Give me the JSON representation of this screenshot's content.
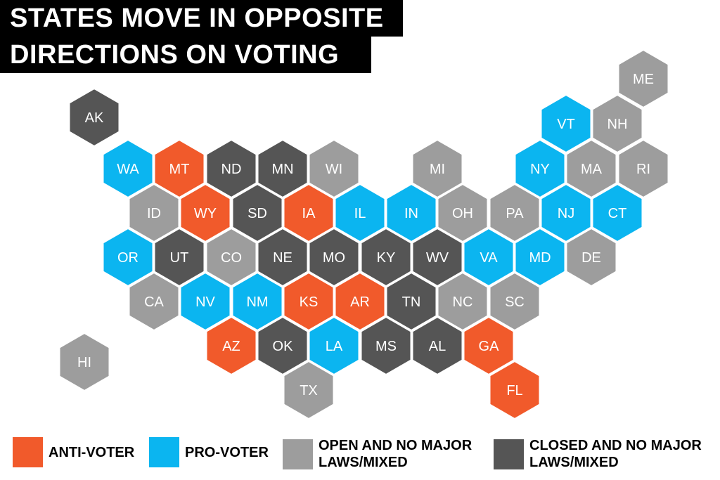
{
  "title": {
    "line1": "STATES MOVE IN OPPOSITE",
    "line2": "DIRECTIONS ON VOTING"
  },
  "colors": {
    "anti": "#f15a2b",
    "pro": "#0bb5f0",
    "open": "#9d9d9d",
    "closed": "#555555",
    "text": "#ffffff",
    "stroke": "#ffffff"
  },
  "legend": [
    {
      "key": "anti",
      "label_1": "ANTI-VOTER",
      "label_2": ""
    },
    {
      "key": "pro",
      "label_1": "PRO-VOTER",
      "label_2": ""
    },
    {
      "key": "open",
      "label_1": "OPEN AND NO MAJOR",
      "label_2": "LAWS/MIXED"
    },
    {
      "key": "closed",
      "label_1": "CLOSED AND NO MAJOR",
      "label_2": "LAWS/MIXED"
    }
  ],
  "states": [
    {
      "abbr": "ME",
      "cat": "open"
    },
    {
      "abbr": "AK",
      "cat": "closed"
    },
    {
      "abbr": "VT",
      "cat": "pro"
    },
    {
      "abbr": "NH",
      "cat": "open"
    },
    {
      "abbr": "WA",
      "cat": "pro"
    },
    {
      "abbr": "MT",
      "cat": "anti"
    },
    {
      "abbr": "ND",
      "cat": "closed"
    },
    {
      "abbr": "MN",
      "cat": "closed"
    },
    {
      "abbr": "WI",
      "cat": "open"
    },
    {
      "abbr": "MI",
      "cat": "open"
    },
    {
      "abbr": "NY",
      "cat": "pro"
    },
    {
      "abbr": "MA",
      "cat": "open"
    },
    {
      "abbr": "RI",
      "cat": "open"
    },
    {
      "abbr": "ID",
      "cat": "open"
    },
    {
      "abbr": "WY",
      "cat": "anti"
    },
    {
      "abbr": "SD",
      "cat": "closed"
    },
    {
      "abbr": "IA",
      "cat": "anti"
    },
    {
      "abbr": "IL",
      "cat": "pro"
    },
    {
      "abbr": "IN",
      "cat": "pro"
    },
    {
      "abbr": "OH",
      "cat": "open"
    },
    {
      "abbr": "PA",
      "cat": "open"
    },
    {
      "abbr": "NJ",
      "cat": "pro"
    },
    {
      "abbr": "CT",
      "cat": "pro"
    },
    {
      "abbr": "OR",
      "cat": "pro"
    },
    {
      "abbr": "UT",
      "cat": "closed"
    },
    {
      "abbr": "CO",
      "cat": "open"
    },
    {
      "abbr": "NE",
      "cat": "closed"
    },
    {
      "abbr": "MO",
      "cat": "closed"
    },
    {
      "abbr": "KY",
      "cat": "closed"
    },
    {
      "abbr": "WV",
      "cat": "closed"
    },
    {
      "abbr": "VA",
      "cat": "pro"
    },
    {
      "abbr": "MD",
      "cat": "pro"
    },
    {
      "abbr": "DE",
      "cat": "open"
    },
    {
      "abbr": "CA",
      "cat": "open"
    },
    {
      "abbr": "NV",
      "cat": "pro"
    },
    {
      "abbr": "NM",
      "cat": "pro"
    },
    {
      "abbr": "KS",
      "cat": "anti"
    },
    {
      "abbr": "AR",
      "cat": "anti"
    },
    {
      "abbr": "TN",
      "cat": "closed"
    },
    {
      "abbr": "NC",
      "cat": "open"
    },
    {
      "abbr": "SC",
      "cat": "open"
    },
    {
      "abbr": "AZ",
      "cat": "anti"
    },
    {
      "abbr": "OK",
      "cat": "closed"
    },
    {
      "abbr": "LA",
      "cat": "pro"
    },
    {
      "abbr": "MS",
      "cat": "closed"
    },
    {
      "abbr": "AL",
      "cat": "closed"
    },
    {
      "abbr": "GA",
      "cat": "anti"
    },
    {
      "abbr": "HI",
      "cat": "open"
    },
    {
      "abbr": "FL",
      "cat": "anti"
    },
    {
      "abbr": "TX",
      "cat": "open"
    }
  ]
}
